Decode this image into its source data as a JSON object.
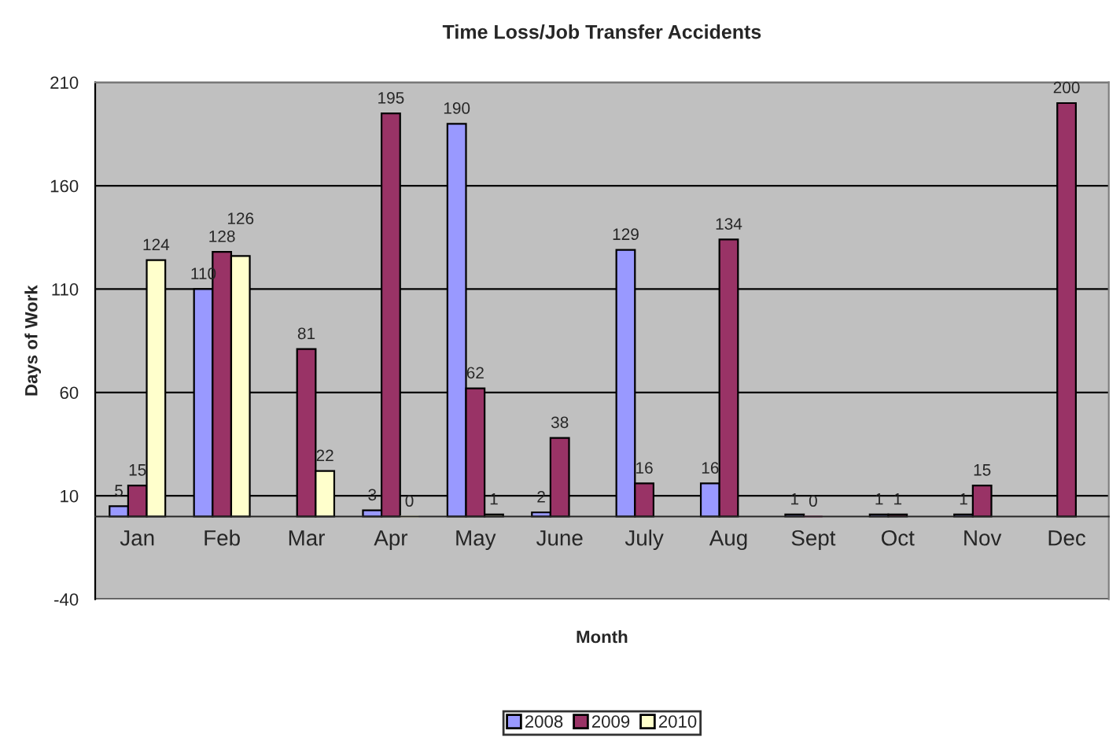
{
  "chart_data": {
    "type": "bar",
    "title": "Time Loss/Job Transfer Accidents",
    "xlabel": "Month",
    "ylabel": "Days of Work",
    "categories": [
      "Jan",
      "Feb",
      "Mar",
      "Apr",
      "May",
      "June",
      "July",
      "Aug",
      "Sept",
      "Oct",
      "Nov",
      "Dec"
    ],
    "series": [
      {
        "name": "2008",
        "color": "#9999ff",
        "values": [
          5,
          110,
          null,
          3,
          190,
          2,
          129,
          16,
          1,
          1,
          1,
          null
        ]
      },
      {
        "name": "2009",
        "color": "#993366",
        "values": [
          15,
          128,
          81,
          195,
          62,
          38,
          16,
          134,
          0,
          1,
          15,
          200
        ]
      },
      {
        "name": "2010",
        "color": "#ffffcc",
        "values": [
          124,
          126,
          22,
          0,
          1,
          null,
          null,
          null,
          null,
          null,
          null,
          null
        ]
      }
    ],
    "ylim": [
      -40,
      210
    ],
    "yticks": [
      -40,
      10,
      60,
      110,
      160,
      210
    ],
    "grid": "y",
    "legend": "bottom",
    "data_labels": true
  }
}
